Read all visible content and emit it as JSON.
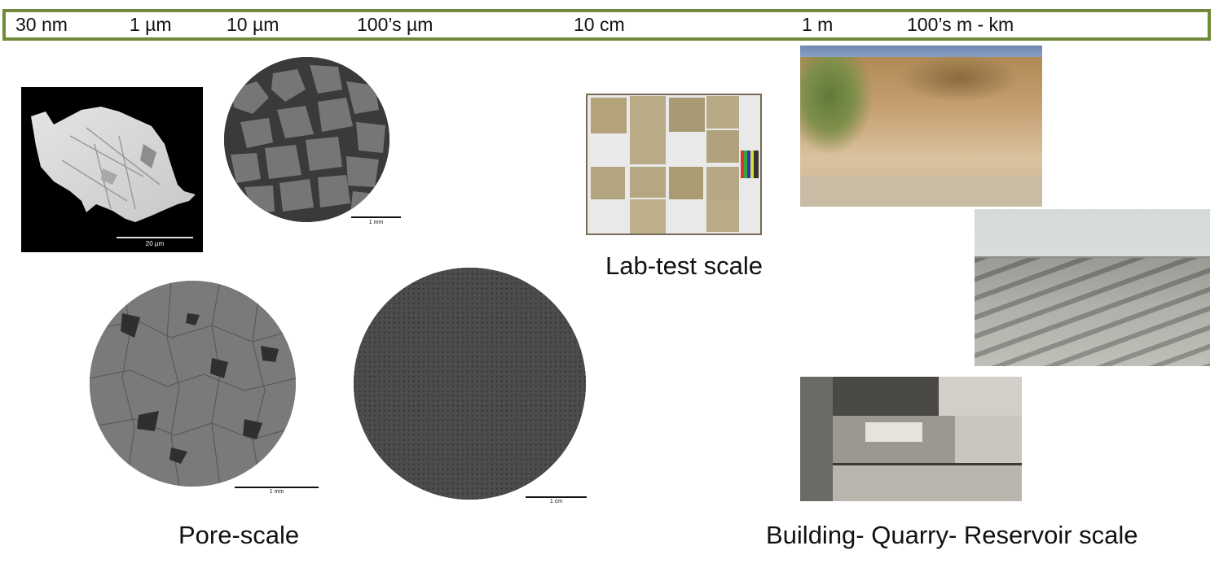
{
  "scale_bar": {
    "ticks": [
      "30 nm",
      "1 µm",
      "10 µm",
      "100’s µm",
      "10 cm",
      "1 m",
      "100’s m - km"
    ],
    "border_color": "#6f8a3a"
  },
  "images": {
    "sem_grain": {
      "scalebar_label": "20 µm"
    },
    "pore_circle_small": {
      "scalebar_label": "1 mm"
    },
    "pore_circle_large_left": {
      "scalebar_label": "1 mm"
    },
    "pore_circle_large_right": {
      "scalebar_label": "1 cm"
    }
  },
  "captions": {
    "pore_scale": "Pore-scale",
    "lab_test_scale": "Lab-test scale",
    "building_scale": "Building- Quarry- Reservoir scale"
  }
}
